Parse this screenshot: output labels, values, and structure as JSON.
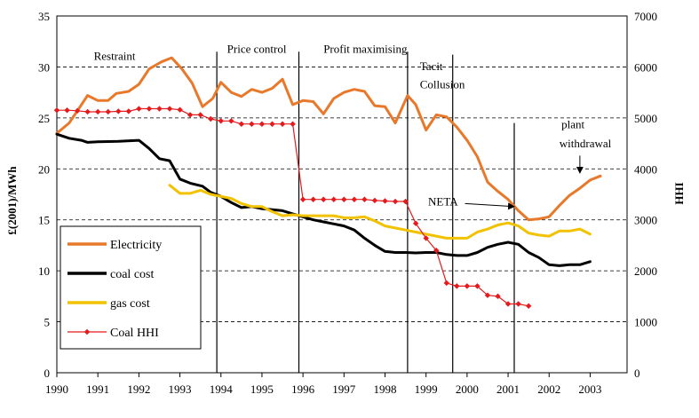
{
  "chart_data": {
    "type": "line",
    "xlabel": "",
    "ylabel": "£(2001)/MWh",
    "y2label": "HHI",
    "xlim": [
      1990,
      2003.9
    ],
    "ylim": [
      0,
      35
    ],
    "y2lim": [
      0,
      7000
    ],
    "x_ticks": [
      1990,
      1991,
      1992,
      1993,
      1994,
      1995,
      1996,
      1997,
      1998,
      1999,
      2000,
      2001,
      2002,
      2003
    ],
    "y_ticks": [
      0,
      5,
      10,
      15,
      20,
      25,
      30,
      35
    ],
    "y2_ticks": [
      0,
      1000,
      2000,
      3000,
      4000,
      5000,
      6000,
      7000
    ],
    "grid": "horizontal dashed",
    "legend_position": "bottom-left",
    "phase_dividers": [
      1993.9,
      1995.9,
      1998.55,
      1999.65,
      2001.15
    ],
    "annotations": [
      {
        "text": "Restraint",
        "x": 1990.9,
        "y": 30.7
      },
      {
        "text": "Price control",
        "x": 1994.15,
        "y": 31.4
      },
      {
        "text": "Profit maximising",
        "x": 1996.5,
        "y": 31.4
      },
      {
        "text": "Tacit",
        "x": 1998.85,
        "y": 29.7
      },
      {
        "text": "Collusion",
        "x": 1998.85,
        "y": 27.9
      },
      {
        "text": "NETA",
        "x": 1999.05,
        "y": 16.4
      },
      {
        "text": "plant",
        "x": 2002.3,
        "y": 24.0
      },
      {
        "text": "withdrawal",
        "x": 2002.25,
        "y": 22.1
      }
    ],
    "series": [
      {
        "name": "Electricity",
        "axis": "left",
        "color": "#E8782A",
        "points": [
          [
            1990,
            23.5
          ],
          [
            1990.3,
            24.5
          ],
          [
            1990.55,
            26
          ],
          [
            1990.75,
            27.2
          ],
          [
            1991,
            26.7
          ],
          [
            1991.25,
            26.7
          ],
          [
            1991.45,
            27.4
          ],
          [
            1991.75,
            27.6
          ],
          [
            1992,
            28.3
          ],
          [
            1992.25,
            29.8
          ],
          [
            1992.55,
            30.5
          ],
          [
            1992.8,
            30.9
          ],
          [
            1993.05,
            29.8
          ],
          [
            1993.3,
            28.4
          ],
          [
            1993.55,
            26.1
          ],
          [
            1993.8,
            26.9
          ],
          [
            1994,
            28.5
          ],
          [
            1994.25,
            27.5
          ],
          [
            1994.5,
            27.1
          ],
          [
            1994.75,
            27.8
          ],
          [
            1995,
            27.5
          ],
          [
            1995.25,
            27.9
          ],
          [
            1995.5,
            28.8
          ],
          [
            1995.75,
            26.3
          ],
          [
            1996,
            26.7
          ],
          [
            1996.25,
            26.6
          ],
          [
            1996.5,
            25.4
          ],
          [
            1996.75,
            26.9
          ],
          [
            1997,
            27.5
          ],
          [
            1997.25,
            27.8
          ],
          [
            1997.5,
            27.6
          ],
          [
            1997.75,
            26.2
          ],
          [
            1998,
            26.1
          ],
          [
            1998.25,
            24.5
          ],
          [
            1998.55,
            27.2
          ],
          [
            1998.75,
            26.3
          ],
          [
            1999,
            23.8
          ],
          [
            1999.25,
            25.3
          ],
          [
            1999.5,
            25.1
          ],
          [
            1999.75,
            24.1
          ],
          [
            2000,
            22.8
          ],
          [
            2000.25,
            21.2
          ],
          [
            2000.5,
            18.7
          ],
          [
            2000.75,
            17.8
          ],
          [
            2001,
            17.0
          ],
          [
            2001.25,
            15.9
          ],
          [
            2001.5,
            15.0
          ],
          [
            2001.75,
            15.1
          ],
          [
            2002,
            15.3
          ],
          [
            2002.25,
            16.4
          ],
          [
            2002.5,
            17.4
          ],
          [
            2002.75,
            18.1
          ],
          [
            2003,
            18.9
          ],
          [
            2003.25,
            19.3
          ]
        ]
      },
      {
        "name": "coal cost",
        "axis": "left",
        "color": "#000000",
        "points": [
          [
            1990,
            23.4
          ],
          [
            1990.3,
            23.0
          ],
          [
            1990.6,
            22.8
          ],
          [
            1990.75,
            22.6
          ],
          [
            1991,
            22.65
          ],
          [
            1991.5,
            22.7
          ],
          [
            1992,
            22.8
          ],
          [
            1992.25,
            22.0
          ],
          [
            1992.5,
            21.0
          ],
          [
            1992.75,
            20.8
          ],
          [
            1993,
            19.0
          ],
          [
            1993.25,
            18.6
          ],
          [
            1993.55,
            18.3
          ],
          [
            1993.75,
            17.7
          ],
          [
            1994,
            17.3
          ],
          [
            1994.25,
            16.7
          ],
          [
            1994.5,
            16.2
          ],
          [
            1994.75,
            16.3
          ],
          [
            1995,
            16.1
          ],
          [
            1995.5,
            15.9
          ],
          [
            1995.9,
            15.4
          ],
          [
            1996.25,
            15.0
          ],
          [
            1996.5,
            14.8
          ],
          [
            1996.75,
            14.6
          ],
          [
            1997,
            14.4
          ],
          [
            1997.25,
            14.0
          ],
          [
            1997.5,
            13.2
          ],
          [
            1997.75,
            12.5
          ],
          [
            1998,
            11.9
          ],
          [
            1998.25,
            11.8
          ],
          [
            1998.5,
            11.8
          ],
          [
            1998.75,
            11.75
          ],
          [
            1999,
            11.8
          ],
          [
            1999.25,
            11.8
          ],
          [
            1999.5,
            11.6
          ],
          [
            1999.75,
            11.5
          ],
          [
            2000,
            11.5
          ],
          [
            2000.25,
            11.8
          ],
          [
            2000.5,
            12.3
          ],
          [
            2000.75,
            12.6
          ],
          [
            2001,
            12.8
          ],
          [
            2001.25,
            12.6
          ],
          [
            2001.5,
            11.8
          ],
          [
            2001.75,
            11.3
          ],
          [
            2002,
            10.6
          ],
          [
            2002.25,
            10.5
          ],
          [
            2002.5,
            10.6
          ],
          [
            2002.75,
            10.6
          ],
          [
            2003,
            10.9
          ]
        ]
      },
      {
        "name": "gas cost",
        "axis": "left",
        "color": "#F2C200",
        "points": [
          [
            1992.75,
            18.4
          ],
          [
            1993,
            17.6
          ],
          [
            1993.25,
            17.6
          ],
          [
            1993.5,
            17.9
          ],
          [
            1993.75,
            17.5
          ],
          [
            1994,
            17.3
          ],
          [
            1994.25,
            17.1
          ],
          [
            1994.5,
            16.6
          ],
          [
            1994.75,
            16.3
          ],
          [
            1995,
            16.3
          ],
          [
            1995.25,
            15.8
          ],
          [
            1995.5,
            15.4
          ],
          [
            1995.75,
            15.5
          ],
          [
            1996,
            15.4
          ],
          [
            1996.5,
            15.4
          ],
          [
            1996.75,
            15.4
          ],
          [
            1997,
            15.2
          ],
          [
            1997.25,
            15.2
          ],
          [
            1997.5,
            15.3
          ],
          [
            1997.75,
            14.9
          ],
          [
            1998,
            14.4
          ],
          [
            1998.25,
            14.2
          ],
          [
            1998.5,
            14.0
          ],
          [
            1998.75,
            13.8
          ],
          [
            1999,
            13.6
          ],
          [
            1999.25,
            13.4
          ],
          [
            1999.5,
            13.2
          ],
          [
            1999.75,
            13.2
          ],
          [
            2000,
            13.2
          ],
          [
            2000.25,
            13.8
          ],
          [
            2000.5,
            14.1
          ],
          [
            2000.75,
            14.5
          ],
          [
            2001,
            14.7
          ],
          [
            2001.25,
            14.4
          ],
          [
            2001.5,
            13.7
          ],
          [
            2001.75,
            13.5
          ],
          [
            2002,
            13.4
          ],
          [
            2002.25,
            13.9
          ],
          [
            2002.5,
            13.9
          ],
          [
            2002.75,
            14.1
          ],
          [
            2003,
            13.6
          ]
        ]
      },
      {
        "name": "Coal HHI",
        "axis": "right",
        "color": "#E41A1C",
        "marker": "diamond",
        "points": [
          [
            1990,
            5150
          ],
          [
            1990.25,
            5150
          ],
          [
            1990.5,
            5140
          ],
          [
            1990.75,
            5120
          ],
          [
            1991,
            5120
          ],
          [
            1991.25,
            5120
          ],
          [
            1991.5,
            5130
          ],
          [
            1991.75,
            5130
          ],
          [
            1992,
            5180
          ],
          [
            1992.25,
            5180
          ],
          [
            1992.5,
            5180
          ],
          [
            1992.75,
            5180
          ],
          [
            1993,
            5160
          ],
          [
            1993.25,
            5060
          ],
          [
            1993.5,
            5060
          ],
          [
            1993.75,
            4980
          ],
          [
            1994,
            4940
          ],
          [
            1994.25,
            4940
          ],
          [
            1994.5,
            4880
          ],
          [
            1994.75,
            4880
          ],
          [
            1995,
            4880
          ],
          [
            1995.25,
            4880
          ],
          [
            1995.5,
            4880
          ],
          [
            1995.75,
            4880
          ],
          [
            1996,
            3400
          ],
          [
            1996.25,
            3400
          ],
          [
            1996.5,
            3400
          ],
          [
            1996.75,
            3400
          ],
          [
            1997,
            3400
          ],
          [
            1997.25,
            3400
          ],
          [
            1997.5,
            3400
          ],
          [
            1997.75,
            3380
          ],
          [
            1998,
            3370
          ],
          [
            1998.25,
            3360
          ],
          [
            1998.5,
            3360
          ],
          [
            1998.75,
            2930
          ],
          [
            1999,
            2640
          ],
          [
            1999.25,
            2400
          ],
          [
            1999.5,
            1760
          ],
          [
            1999.75,
            1700
          ],
          [
            2000,
            1700
          ],
          [
            2000.25,
            1700
          ],
          [
            2000.5,
            1520
          ],
          [
            2000.75,
            1500
          ],
          [
            2001,
            1350
          ],
          [
            2001.25,
            1350
          ],
          [
            2001.5,
            1310
          ]
        ]
      }
    ]
  }
}
